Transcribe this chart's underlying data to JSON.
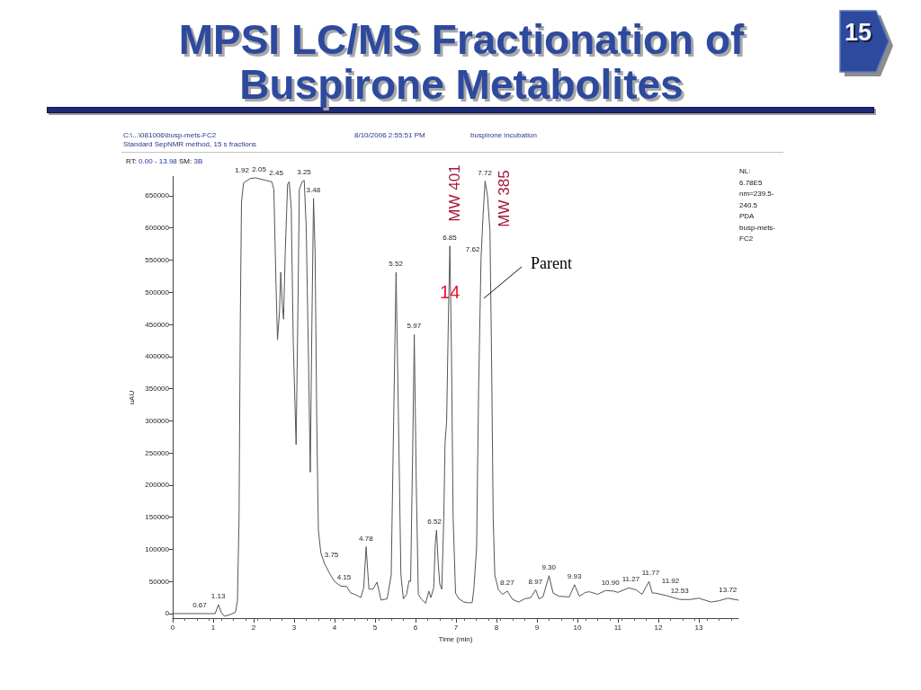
{
  "chart_data": {
    "type": "line",
    "title": "MPSI LC/MS Fractionation of Buspirone Metabolites",
    "xlabel": "Time (min)",
    "ylabel": "uAU",
    "x": [
      0,
      0.67,
      1.05,
      1.13,
      1.2,
      1.27,
      1.4,
      1.55,
      1.6,
      1.64,
      1.67,
      1.7,
      1.75,
      1.92,
      2.05,
      2.3,
      2.45,
      2.5,
      2.55,
      2.59,
      2.64,
      2.67,
      2.71,
      2.74,
      2.78,
      2.84,
      2.88,
      2.93,
      2.98,
      3.05,
      3.09,
      3.13,
      3.2,
      3.25,
      3.3,
      3.36,
      3.4,
      3.44,
      3.48,
      3.52,
      3.56,
      3.6,
      3.66,
      3.75,
      3.9,
      4.0,
      4.15,
      4.3,
      4.4,
      4.5,
      4.65,
      4.72,
      4.78,
      4.85,
      4.95,
      5.05,
      5.15,
      5.3,
      5.4,
      5.46,
      5.52,
      5.58,
      5.64,
      5.7,
      5.78,
      5.84,
      5.88,
      5.93,
      5.97,
      6.02,
      6.07,
      6.14,
      6.25,
      6.33,
      6.38,
      6.45,
      6.49,
      6.52,
      6.56,
      6.6,
      6.65,
      6.7,
      6.73,
      6.77,
      6.81,
      6.85,
      6.89,
      6.93,
      6.99,
      7.07,
      7.2,
      7.3,
      7.4,
      7.44,
      7.51,
      7.56,
      7.62,
      7.67,
      7.72,
      7.78,
      7.84,
      7.88,
      7.92,
      7.96,
      8.05,
      8.15,
      8.27,
      8.4,
      8.55,
      8.7,
      8.85,
      8.97,
      9.05,
      9.15,
      9.3,
      9.4,
      9.55,
      9.8,
      9.93,
      10.05,
      10.2,
      10.3,
      10.5,
      10.7,
      10.9,
      11.0,
      11.27,
      11.45,
      11.6,
      11.77,
      11.85,
      11.92,
      12.2,
      12.53,
      12.8,
      13.0,
      13.3,
      13.5,
      13.72,
      13.98
    ],
    "series": [
      {
        "color": "#555555",
        "values": [
          0,
          0,
          0,
          14000,
          2000,
          -4000,
          -2000,
          2000,
          20000,
          150000,
          450000,
          640000,
          670000,
          677000,
          678000,
          674000,
          672000,
          660000,
          520000,
          426000,
          470000,
          531000,
          480000,
          458000,
          560000,
          668000,
          672000,
          630000,
          420000,
          263000,
          450000,
          660000,
          672000,
          674000,
          600000,
          380000,
          220000,
          450000,
          646000,
          560000,
          300000,
          130000,
          95000,
          78000,
          60000,
          50000,
          43000,
          42000,
          32000,
          30000,
          25000,
          40000,
          104000,
          38000,
          38000,
          49000,
          21000,
          23000,
          60000,
          300000,
          531000,
          300000,
          60000,
          23000,
          30000,
          51000,
          50000,
          250000,
          434000,
          200000,
          30000,
          23000,
          16000,
          35000,
          25000,
          40000,
          110000,
          130000,
          80000,
          46000,
          38000,
          150000,
          265000,
          300000,
          450000,
          572000,
          400000,
          150000,
          32000,
          23000,
          18000,
          17000,
          17000,
          37000,
          102000,
          350000,
          553000,
          620000,
          673000,
          650000,
          596000,
          400000,
          150000,
          60000,
          37000,
          30000,
          35000,
          22000,
          18000,
          23000,
          25000,
          37000,
          23000,
          26000,
          59000,
          32000,
          27000,
          26000,
          45000,
          27000,
          33000,
          34000,
          30000,
          36000,
          35000,
          33000,
          40000,
          37000,
          30000,
          50000,
          32000,
          32000,
          28000,
          22000,
          22000,
          24000,
          18000,
          20000,
          24000,
          21000
        ]
      }
    ],
    "xlim": [
      0,
      13.98
    ],
    "ylim": [
      -8000,
      680000
    ],
    "xticks": [
      0,
      1,
      2,
      3,
      4,
      5,
      6,
      7,
      8,
      9,
      10,
      11,
      12,
      13
    ],
    "yticks": [
      0,
      50000,
      100000,
      150000,
      200000,
      250000,
      300000,
      350000,
      400000,
      450000,
      500000,
      550000,
      600000,
      650000
    ],
    "annotations": [
      "C:\\...\\081006\\busp-mets-FC2",
      "8/10/2006 2:55:51 PM",
      "buspirone incubation",
      "Standard SepNMR method, 15 s fractions",
      "RT: 0.00 - 13.98 SM: 3B",
      "NL:\n6.78E5\nnm=239.5-\n240.5\nPDA\nbusp-mets-\nFC2",
      "15",
      {
        "text": "MW 401",
        "x": 6.85,
        "y": 572000
      },
      {
        "text": "MW 385",
        "x": 7.72,
        "y": 673000
      },
      {
        "text": "14",
        "x": 6.85,
        "y": 500000
      },
      {
        "text": "Parent",
        "x": 7.69,
        "y": 490000
      },
      {
        "text": "0.67",
        "x": 0.67,
        "y": 0
      },
      {
        "text": "1.13",
        "x": 1.13,
        "y": 14000
      },
      {
        "text": "1.92",
        "x": 1.92,
        "y": 677000
      },
      {
        "text": "2.05",
        "x": 2.05,
        "y": 678000
      },
      {
        "text": "2.45",
        "x": 2.45,
        "y": 672000
      },
      {
        "text": "3.25",
        "x": 3.25,
        "y": 674000
      },
      {
        "text": "3.48",
        "x": 3.48,
        "y": 646000
      },
      {
        "text": "3.75",
        "x": 3.75,
        "y": 78000
      },
      {
        "text": "4.15",
        "x": 4.15,
        "y": 43000
      },
      {
        "text": "4.78",
        "x": 4.78,
        "y": 104000
      },
      {
        "text": "5.52",
        "x": 5.52,
        "y": 531000
      },
      {
        "text": "5.97",
        "x": 5.97,
        "y": 434000
      },
      {
        "text": "6.52",
        "x": 6.52,
        "y": 130000
      },
      {
        "text": "6.85",
        "x": 6.85,
        "y": 572000
      },
      {
        "text": "7.62",
        "x": 7.62,
        "y": 553000
      },
      {
        "text": "7.72",
        "x": 7.72,
        "y": 673000
      },
      {
        "text": "8.27",
        "x": 8.27,
        "y": 35000
      },
      {
        "text": "8.97",
        "x": 8.97,
        "y": 37000
      },
      {
        "text": "9.30",
        "x": 9.3,
        "y": 59000
      },
      {
        "text": "9.93",
        "x": 9.93,
        "y": 45000
      },
      {
        "text": "10.90",
        "x": 10.9,
        "y": 35000
      },
      {
        "text": "11.27",
        "x": 11.27,
        "y": 40000
      },
      {
        "text": "11.77",
        "x": 11.77,
        "y": 50000
      },
      {
        "text": "11.92",
        "x": 11.92,
        "y": 32000
      },
      {
        "text": "12.53",
        "x": 12.53,
        "y": 22000
      },
      {
        "text": "13.72",
        "x": 13.72,
        "y": 24000
      }
    ]
  }
}
